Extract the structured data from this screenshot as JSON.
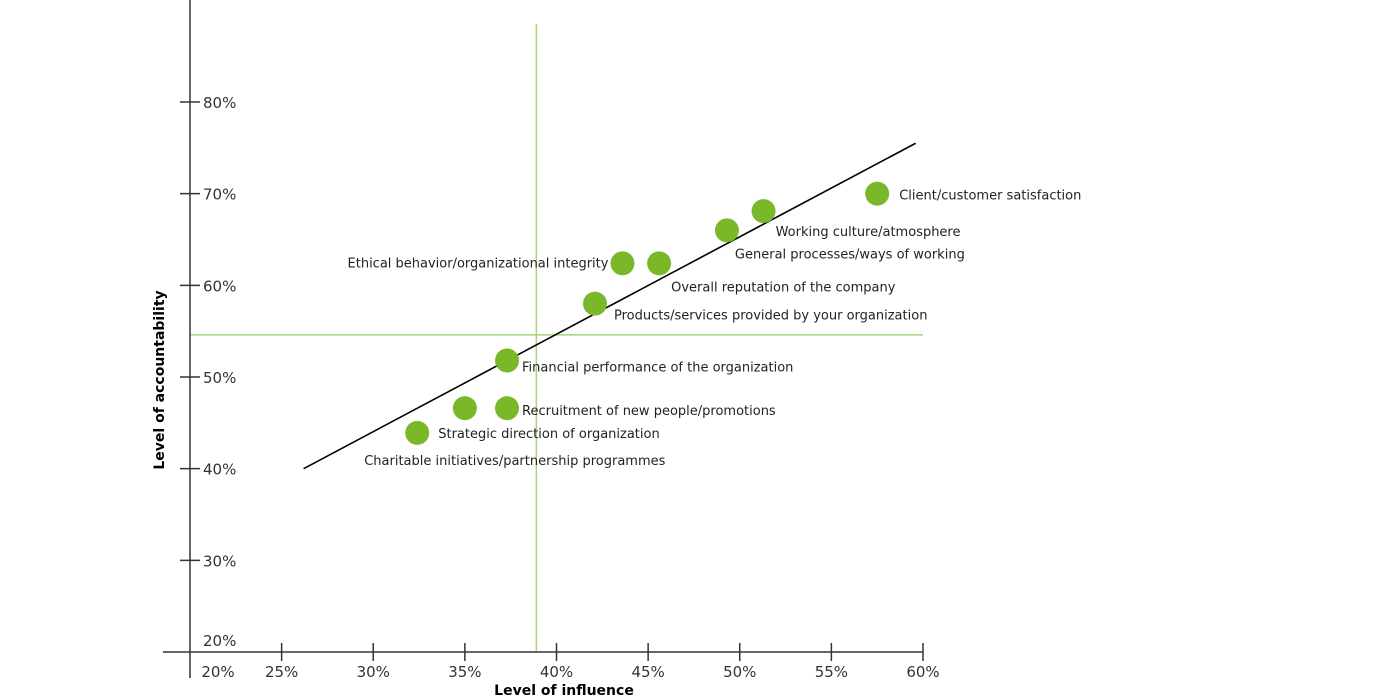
{
  "chart_data": {
    "type": "scatter",
    "xlabel": "Level of influence",
    "ylabel": "Level of accountability",
    "xlim": [
      20,
      60
    ],
    "ylim": [
      20,
      80
    ],
    "x_ticks": [
      "20%",
      "25%",
      "30%",
      "35%",
      "40%",
      "45%",
      "50%",
      "55%",
      "60%"
    ],
    "y_ticks": [
      "20%",
      "30%",
      "40%",
      "50%",
      "60%",
      "70%",
      "80%"
    ],
    "reference_lines": {
      "x": 38.9,
      "y": 54.6
    },
    "trend_line": {
      "x": [
        26.2,
        59.6
      ],
      "y": [
        40.0,
        75.5
      ]
    },
    "colors": {
      "point": "#7ab829",
      "reference": "#a8d37a",
      "trend": "#000000",
      "axis": "#333333"
    },
    "points": [
      {
        "label": "Client/customer satisfaction",
        "x": 57.5,
        "y": 70.0
      },
      {
        "label": "Working culture/atmosphere",
        "x": 51.3,
        "y": 68.1
      },
      {
        "label": "General processes/ways of working",
        "x": 49.3,
        "y": 66.0
      },
      {
        "label": "Overall reputation of the company",
        "x": 45.6,
        "y": 62.4
      },
      {
        "label": "Ethical behavior/organizational integrity",
        "x": 43.6,
        "y": 62.4
      },
      {
        "label": "Products/services provided by your organization",
        "x": 42.1,
        "y": 58.0
      },
      {
        "label": "Financial performance of the organization",
        "x": 37.3,
        "y": 51.8
      },
      {
        "label": "Recruitment of new people/promotions",
        "x": 37.3,
        "y": 46.6
      },
      {
        "label": "",
        "x": 35.0,
        "y": 46.6
      },
      {
        "label": "Strategic direction of organization",
        "x": 32.4,
        "y": 43.9
      },
      {
        "label": "Charitable initiatives/partnership programmes",
        "x": 32.4,
        "y": 43.9
      }
    ]
  }
}
